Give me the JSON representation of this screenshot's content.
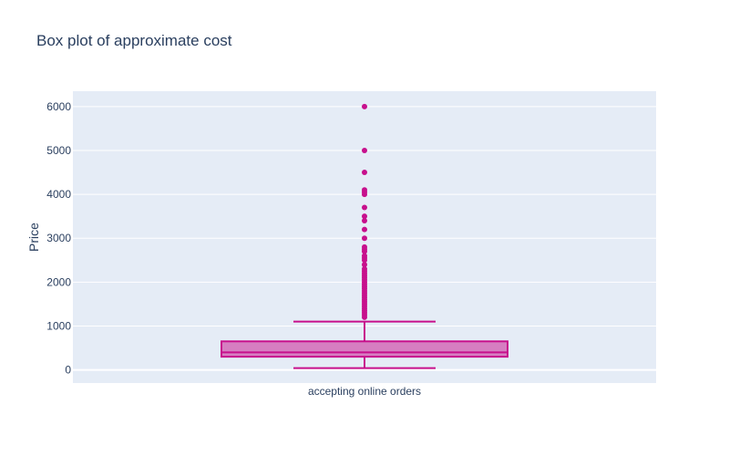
{
  "chart_data": {
    "type": "box",
    "title": "Box plot of approximate cost",
    "xlabel": "",
    "ylabel": "Price",
    "categories": [
      "accepting online orders"
    ],
    "ylim": [
      -300,
      6350
    ],
    "yticks": [
      0,
      1000,
      2000,
      3000,
      4000,
      5000,
      6000
    ],
    "grid": true,
    "color": "#c7108c",
    "box": {
      "lower_fence": 40,
      "q1": 300,
      "median": 400,
      "q3": 650,
      "upper_fence": 1100
    },
    "outliers": [
      1200,
      1250,
      1300,
      1350,
      1400,
      1450,
      1500,
      1550,
      1600,
      1650,
      1700,
      1750,
      1800,
      1850,
      1900,
      1950,
      2000,
      2050,
      2100,
      2150,
      2200,
      2250,
      2300,
      2400,
      2500,
      2550,
      2600,
      2700,
      2750,
      2800,
      3000,
      3200,
      3400,
      3500,
      3700,
      4000,
      4050,
      4100,
      4500,
      5000,
      6000
    ]
  }
}
